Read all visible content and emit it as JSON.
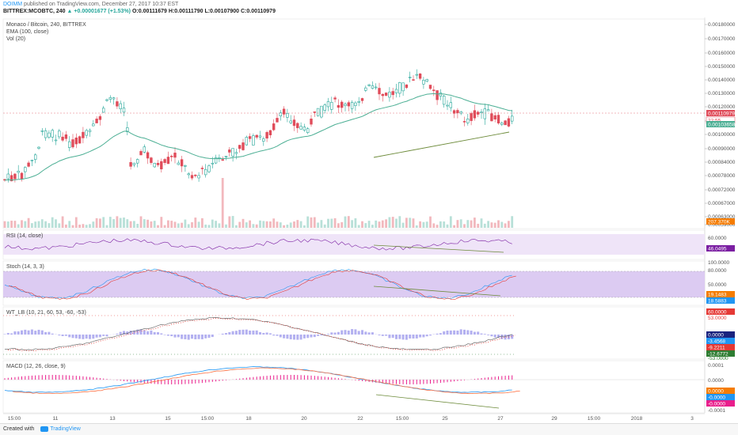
{
  "header": {
    "author": "DOIMM",
    "published": " published on TradingView.com, December 27, 2017 10:37 EST",
    "symbol": "BITTREX:MCOBTC, 240",
    "change": "▲ +0.00001677 (+1.53%)",
    "ohlc": "O:0.00111679 H:0.00111790 L:0.00107900 C:0.00110979"
  },
  "panes": {
    "main": {
      "title": "Monaco / Bitcoin, 240, BITTREX",
      "ema_label": "EMA (100, close)",
      "vol_label": "Vol (20)",
      "price_ticks": [
        "0.00180000",
        "0.00170000",
        "0.00160000",
        "0.00150000",
        "0.00140000",
        "0.00130000",
        "0.00120000",
        "0.00110000",
        "0.00100000",
        "0.00090000",
        "0.00084000",
        "0.00078000",
        "0.00072000",
        "0.00067000",
        "0.00063000",
        "0.00059000"
      ],
      "last_price": "0.00110979",
      "countdown": "22:55",
      "ema_value": "0.00103658",
      "volume_value": "207.370K"
    },
    "rsi": {
      "label": "RSI (14, close)",
      "ticks": [
        "60.0000",
        "40.0000"
      ],
      "value": "46.0495"
    },
    "stoch": {
      "label": "Stoch (14, 3, 3)",
      "ticks": [
        "100.0000",
        "80.0000",
        "50.0000",
        "20.0000"
      ],
      "k": "19.1483",
      "d": "18.5883"
    },
    "wt": {
      "label": "WT_LB (10, 21, 60, 53, -60, -53)",
      "ticks": [
        "60.0000",
        "53.0000",
        "0.0000",
        "-53.0000"
      ],
      "v1": "-3.4568",
      "v2": "-9.2211",
      "v3": "-12.6772"
    },
    "macd": {
      "label": "MACD (12, 26, close, 9)",
      "ticks": [
        "0.0001",
        "0.0000",
        "-0.0001"
      ],
      "v1": "0.0000",
      "v2": "-0.0000",
      "v3": "-0.0000"
    }
  },
  "time_axis": [
    "15:00",
    "11",
    "13",
    "15",
    "15:00",
    "18",
    "20",
    "22",
    "15:00",
    "25",
    "27",
    "29",
    "15:00",
    "2018",
    "3"
  ],
  "colors": {
    "up": "#26a69a",
    "down": "#e04c5a",
    "ema": "#4caf94",
    "rsi": "#7b1fa2",
    "stoch_k": "#2196f3",
    "stoch_d": "#e53935",
    "macd": "#2196f3",
    "signal": "#ff7043",
    "hist": "#e91e8c",
    "band": "#e7d9f5"
  },
  "footer": {
    "created": "Created with",
    "brand": "TradingView"
  }
}
